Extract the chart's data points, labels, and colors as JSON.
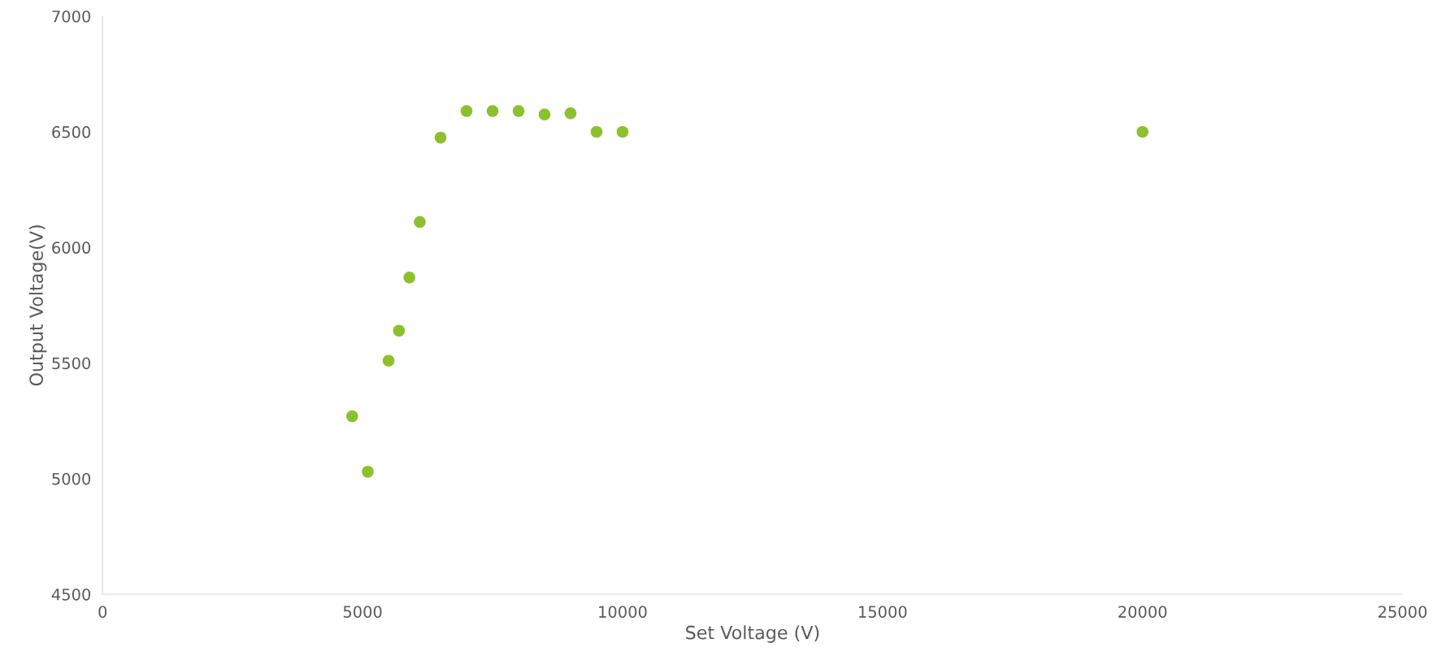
{
  "chart_data": {
    "type": "scatter",
    "xlabel": "Set Voltage (V)",
    "ylabel": "Output Voltage(V)",
    "x": [
      5100,
      4800,
      5500,
      5700,
      5900,
      6100,
      6500,
      7000,
      7500,
      8000,
      8500,
      9000,
      9500,
      10000,
      20000
    ],
    "values": [
      5030,
      5270,
      5510,
      5640,
      5870,
      6110,
      6475,
      6590,
      6590,
      6590,
      6575,
      6580,
      6500,
      6500,
      6500
    ],
    "color": "#8dc02f",
    "marker": "circle",
    "xlim": [
      0,
      25000
    ],
    "xticks": [
      0,
      5000,
      10000,
      15000,
      20000,
      25000
    ],
    "ylim": [
      4500,
      7000
    ],
    "yticks": [
      4500,
      5000,
      5500,
      6000,
      6500,
      7000
    ],
    "grid": false,
    "legend": false
  }
}
